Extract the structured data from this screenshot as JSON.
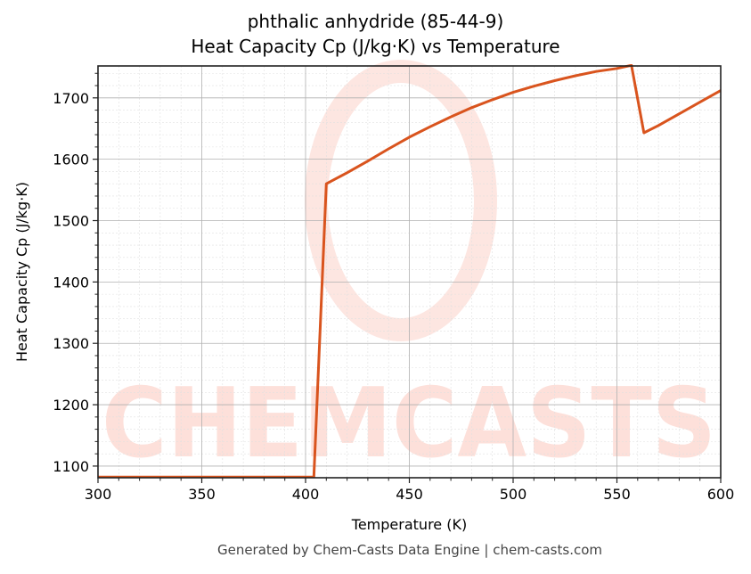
{
  "title_line1": "phthalic anhydride (85-44-9)",
  "title_line2": "Heat Capacity Cp (J/kg·K) vs Temperature",
  "footer": "Generated by Chem-Casts Data Engine | chem-casts.com",
  "watermark": "CHEMCASTS",
  "colors": {
    "line": "#d9541e",
    "watermark": "#fde0da",
    "grid_major": "#b0b0b0",
    "grid_minor": "#e0e0e0"
  },
  "chart_data": {
    "type": "line",
    "title": "phthalic anhydride (85-44-9)\nHeat Capacity Cp (J/kg·K) vs Temperature",
    "xlabel": "Temperature (K)",
    "ylabel": "Heat Capacity Cp (J/kg·K)",
    "xlim": [
      300,
      600
    ],
    "ylim": [
      1081,
      1752
    ],
    "xticks": [
      300,
      350,
      400,
      450,
      500,
      550,
      600
    ],
    "yticks": [
      1100,
      1200,
      1300,
      1400,
      1500,
      1600,
      1700
    ],
    "grid": true,
    "legend": null,
    "series": [
      {
        "name": "Cp",
        "x": [
          300,
          404,
          410,
          420,
          430,
          440,
          450,
          460,
          470,
          480,
          490,
          500,
          510,
          520,
          530,
          540,
          550,
          557,
          563,
          570,
          580,
          590,
          600
        ],
        "y": [
          1082,
          1082,
          1560,
          1578,
          1597,
          1617,
          1636,
          1653,
          1669,
          1684,
          1697,
          1709,
          1719,
          1728,
          1736,
          1743,
          1748,
          1753,
          1643,
          1655,
          1674,
          1693,
          1712
        ]
      }
    ]
  }
}
